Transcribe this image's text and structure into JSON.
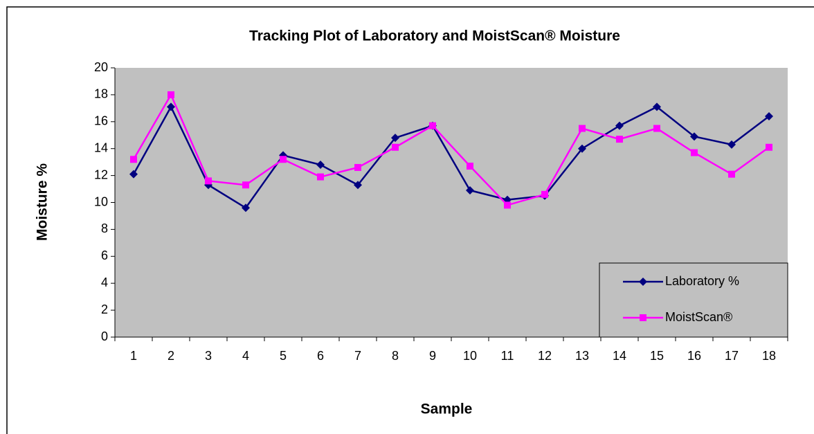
{
  "chart_data": {
    "type": "line",
    "title": "Tracking Plot of Laboratory and MoistScan® Moisture",
    "x_label": "Sample",
    "y_label": "Moisture %",
    "categories": [
      "1",
      "2",
      "3",
      "4",
      "5",
      "6",
      "7",
      "8",
      "9",
      "10",
      "11",
      "12",
      "13",
      "14",
      "15",
      "16",
      "17",
      "18"
    ],
    "series": [
      {
        "name": "Laboratory %",
        "color": "#000080",
        "marker": "diamond",
        "values": [
          12.1,
          17.1,
          11.3,
          9.6,
          13.5,
          12.8,
          11.3,
          14.8,
          15.7,
          10.9,
          10.2,
          10.5,
          14.0,
          15.7,
          17.1,
          14.9,
          14.3,
          16.4
        ]
      },
      {
        "name": "MoistScan®",
        "color": "#ff00ff",
        "marker": "square",
        "values": [
          13.2,
          18.0,
          11.6,
          11.3,
          13.2,
          11.9,
          12.6,
          14.1,
          15.7,
          12.7,
          9.8,
          10.6,
          15.5,
          14.7,
          15.5,
          13.7,
          12.1,
          14.1
        ]
      }
    ],
    "ylim": [
      0,
      20
    ],
    "yticks": [
      0,
      2,
      4,
      6,
      8,
      10,
      12,
      14,
      16,
      18,
      20
    ],
    "legend": "lower right",
    "plot_background": "#c0c0c0"
  }
}
